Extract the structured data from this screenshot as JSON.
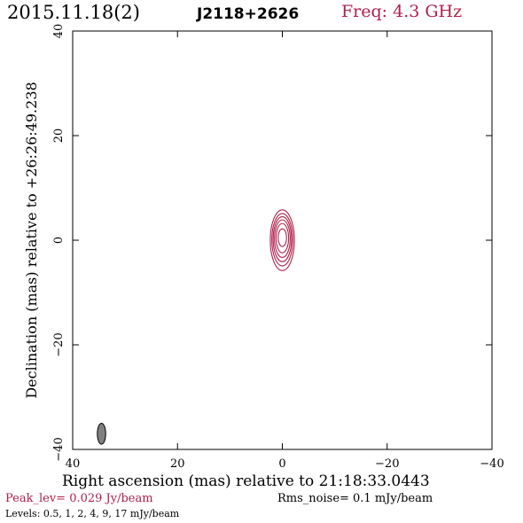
{
  "header": {
    "date": "2015.11.18(2)",
    "source": "J2118+2626",
    "freq": "Freq: 4.3 GHz"
  },
  "footer": {
    "peak": "Peak_lev=  0.029 Jy/beam",
    "rms": "Rms_noise=   0.1 mJy/beam",
    "levels_label": "Levels:",
    "levels": [
      "0.5,",
      "1,",
      "2,",
      "4,",
      "9,",
      "17 mJy/beam"
    ]
  },
  "colors": {
    "accent": "#b0204a",
    "beam": "#808080"
  },
  "chart_data": {
    "type": "contour",
    "title": "J2118+2626",
    "xlabel": "Right ascension (mas) relative to 21:18:33.0443",
    "ylabel": "Declination (mas) relative to +26:26:49.238",
    "xlim": [
      40,
      -40
    ],
    "ylim": [
      -40,
      40
    ],
    "xticks": [
      40,
      20,
      0,
      -20,
      -40
    ],
    "yticks": [
      -40,
      -20,
      0,
      20,
      40
    ],
    "xtick_labels": [
      "40",
      "20",
      "0",
      "−20",
      "−40"
    ],
    "ytick_labels": [
      "−40",
      "−20",
      "0",
      "20",
      "40"
    ],
    "contours": [
      {
        "level": 0.5,
        "cx": 0.0,
        "cy": 0.0,
        "rx": 2.3,
        "ry": 5.8
      },
      {
        "level": 1,
        "cx": 0.0,
        "cy": 0.1,
        "rx": 2.0,
        "ry": 5.0
      },
      {
        "level": 2,
        "cx": 0.0,
        "cy": 0.2,
        "rx": 1.75,
        "ry": 4.3
      },
      {
        "level": 4,
        "cx": 0.0,
        "cy": 0.3,
        "rx": 1.5,
        "ry": 3.6
      },
      {
        "level": 9,
        "cx": 0.0,
        "cy": 0.4,
        "rx": 1.2,
        "ry": 2.8
      },
      {
        "level": 17,
        "cx": 0.0,
        "cy": 0.5,
        "rx": 0.8,
        "ry": 1.7
      }
    ],
    "beam": {
      "cx": 34.5,
      "cy": -37.0,
      "rx": 0.8,
      "ry": 2.0
    }
  }
}
